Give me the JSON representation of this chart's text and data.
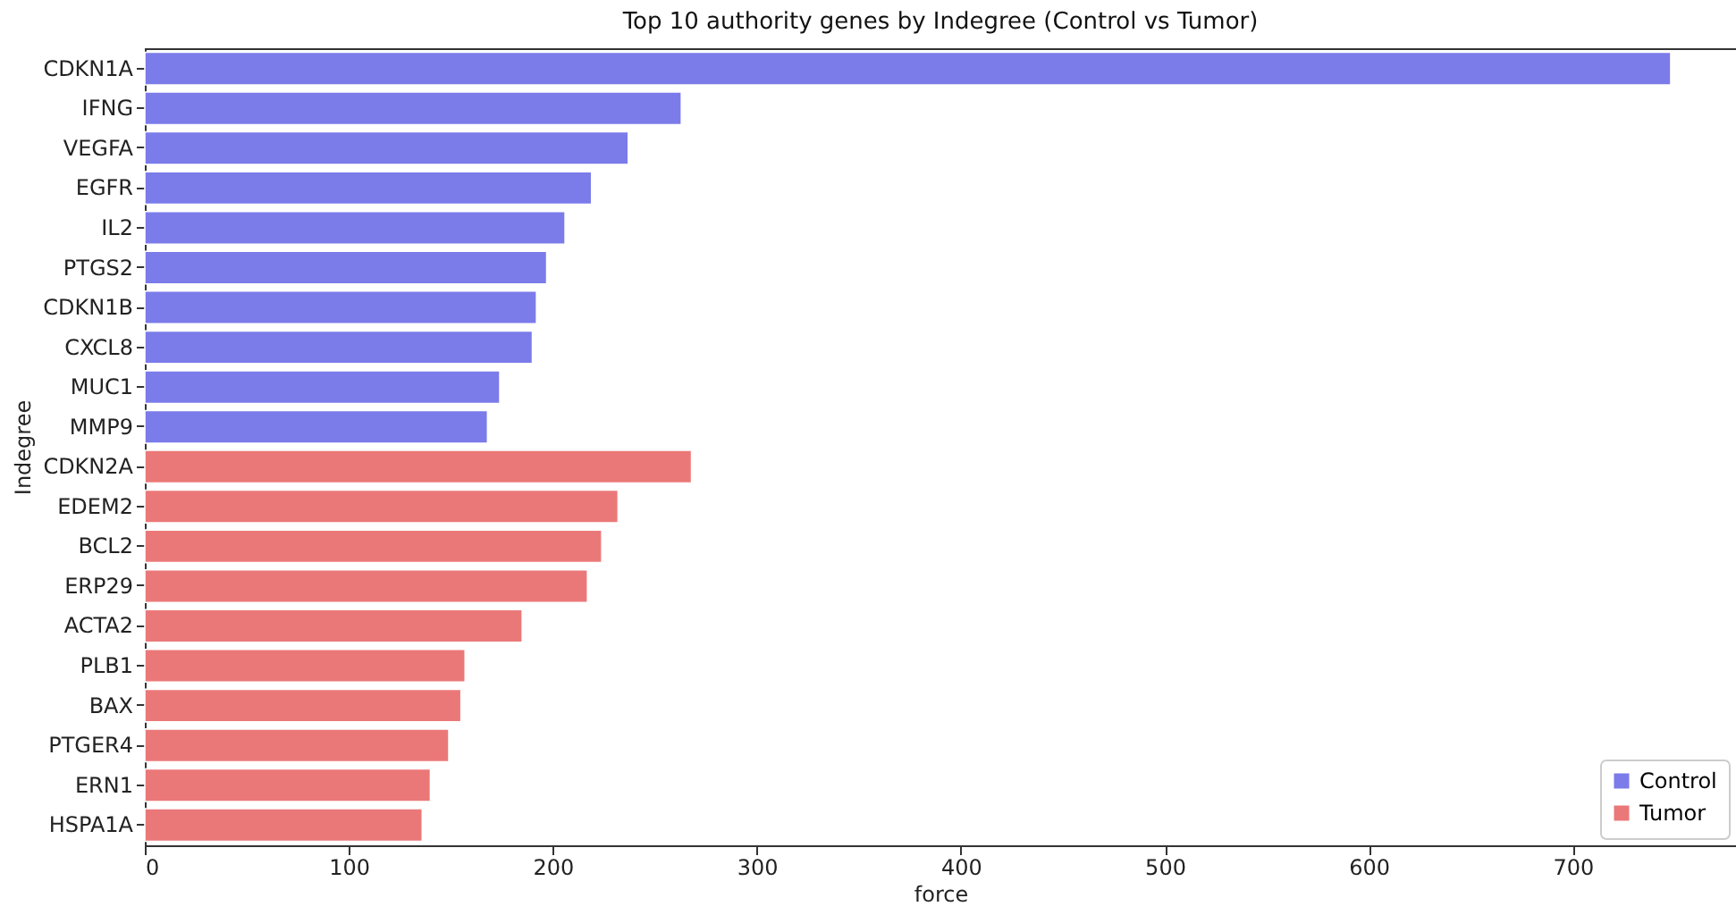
{
  "chart_data": {
    "type": "bar",
    "orientation": "horizontal",
    "title": "Top 10 authority genes by Indegree (Control vs Tumor)",
    "xlabel": "force",
    "ylabel": "Indegree",
    "categories": [
      "CDKN1A",
      "IFNG",
      "VEGFA",
      "EGFR",
      "IL2",
      "PTGS2",
      "CDKN1B",
      "CXCL8",
      "MUC1",
      "MMP9",
      "CDKN2A",
      "EDEM2",
      "BCL2",
      "ERP29",
      "ACTA2",
      "PLB1",
      "BAX",
      "PTGER4",
      "ERN1",
      "HSPA1A"
    ],
    "series": [
      {
        "name": "Control",
        "color": "#7b7bea",
        "values": [
          748,
          263,
          237,
          219,
          206,
          197,
          192,
          190,
          174,
          168,
          null,
          null,
          null,
          null,
          null,
          null,
          null,
          null,
          null,
          null
        ]
      },
      {
        "name": "Tumor",
        "color": "#eb7878",
        "values": [
          null,
          null,
          null,
          null,
          null,
          null,
          null,
          null,
          null,
          null,
          268,
          232,
          224,
          217,
          185,
          157,
          155,
          149,
          140,
          136
        ]
      }
    ],
    "xlim": [
      0,
      780
    ],
    "xticks": [
      0,
      100,
      200,
      300,
      400,
      500,
      600,
      700
    ],
    "grid": false,
    "legend": "bottom right"
  }
}
